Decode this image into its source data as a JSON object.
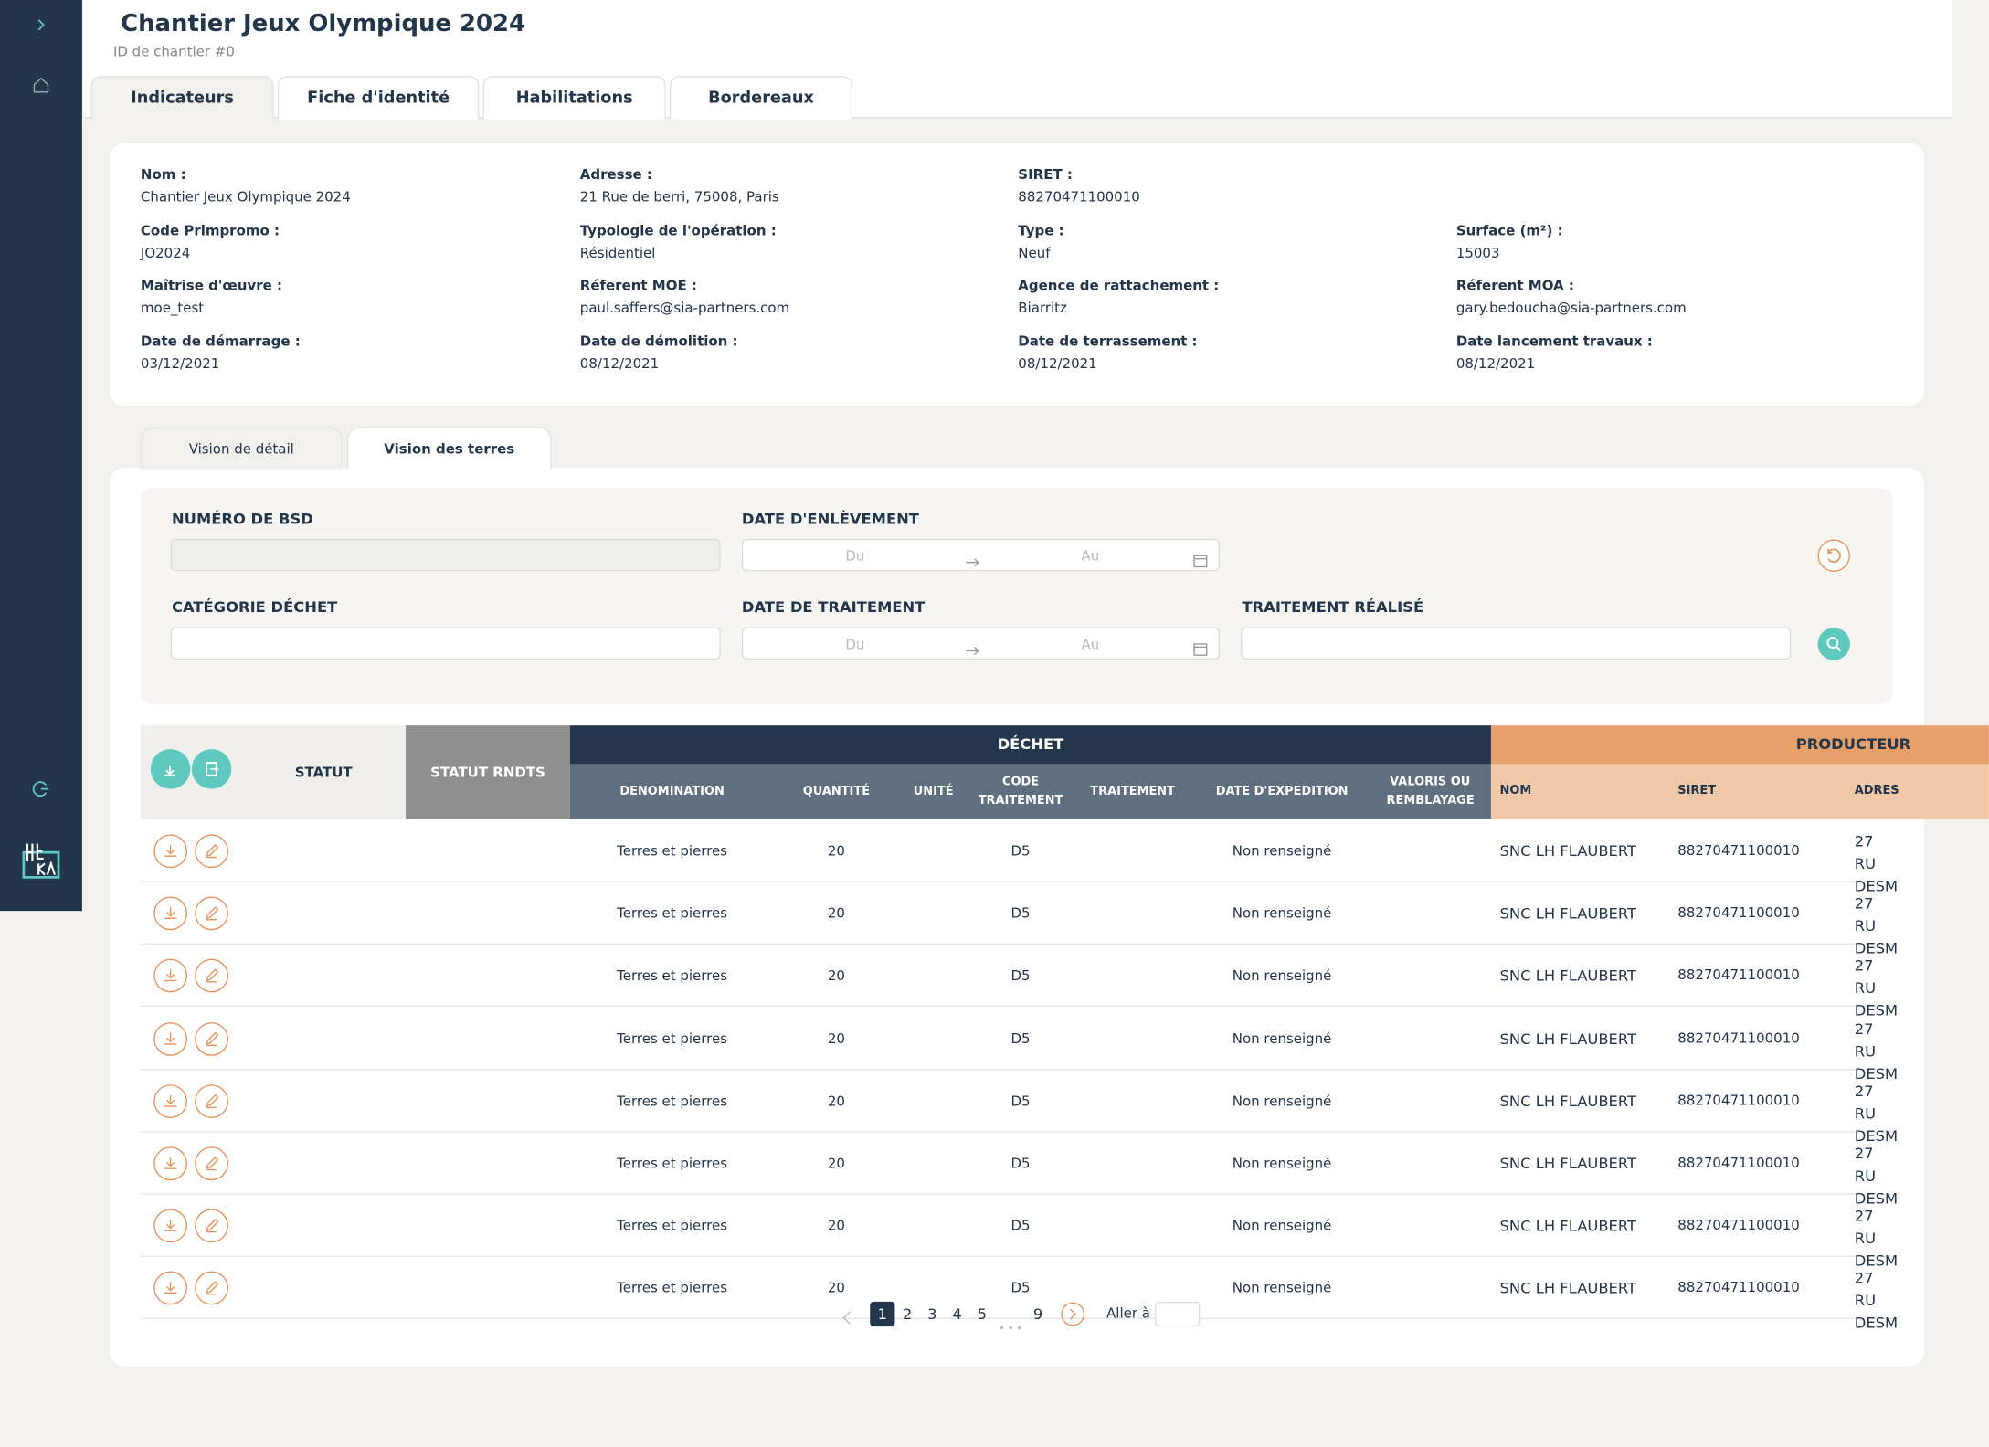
{
  "header": {
    "title": "Chantier Jeux Olympique 2024",
    "subtitle": "ID de chantier #0"
  },
  "tabs": [
    "Indicateurs",
    "Fiche d'identité",
    "Habilitations",
    "Bordereaux"
  ],
  "info": [
    [
      {
        "label": "Nom :",
        "value": "Chantier Jeux Olympique 2024"
      },
      {
        "label": "Adresse :",
        "value": "21 Rue de berri, 75008, Paris"
      },
      {
        "label": "SIRET :",
        "value": "88270471100010"
      }
    ],
    [
      {
        "label": "Code Primpromo :",
        "value": "JO2024"
      },
      {
        "label": "Typologie de l'opération :",
        "value": "Résidentiel"
      },
      {
        "label": "Type :",
        "value": "Neuf"
      },
      {
        "label": "Surface (m²) :",
        "value": "15003"
      }
    ],
    [
      {
        "label": "Maîtrise d'œuvre :",
        "value": "moe_test"
      },
      {
        "label": "Réferent MOE :",
        "value": "paul.saffers@sia-partners.com"
      },
      {
        "label": "Agence de rattachement :",
        "value": "Biarritz"
      },
      {
        "label": "Réferent MOA :",
        "value": "gary.bedoucha@sia-partners.com"
      }
    ],
    [
      {
        "label": "Date de démarrage :",
        "value": "03/12/2021"
      },
      {
        "label": "Date de démolition :",
        "value": "08/12/2021"
      },
      {
        "label": "Date de terrassement :",
        "value": "08/12/2021"
      },
      {
        "label": "Date lancement travaux :",
        "value": "08/12/2021"
      }
    ]
  ],
  "view_tabs": [
    "Vision de détail",
    "Vision des terres"
  ],
  "filters": {
    "bsd": "NUMÉRO DE BSD",
    "enlevement": "DATE D'ENLÈVEMENT",
    "categorie": "CATÉGORIE DÉCHET",
    "traitement_date": "DATE DE TRAITEMENT",
    "traitement": "TRAITEMENT RÉALISÉ",
    "from": "Du",
    "to": "Au"
  },
  "table": {
    "statut": "STATUT",
    "statut_rndts": "STATUT RNDTS",
    "dechet": "DÉCHET",
    "producteur": "PRODUCTEUR",
    "dechet_columns": [
      "DENOMINATION",
      "QUANTITÉ",
      "UNITÉ",
      "CODE TRAITEMENT",
      "TRAITEMENT",
      "DATE D'EXPEDITION",
      "VALORIS OU REMBLAYAGE"
    ],
    "producteur_columns": [
      "NOM",
      "SIRET",
      "ADRES"
    ],
    "rows": [
      {
        "denomination": "Terres et pierres",
        "quantite": 20,
        "code": "D5",
        "date": "Non renseigné",
        "nom": "SNC LH FLAUBERT",
        "siret": "88270471100010",
        "adresse": "27 RU DESM"
      },
      {
        "denomination": "Terres et pierres",
        "quantite": 20,
        "code": "D5",
        "date": "Non renseigné",
        "nom": "SNC LH FLAUBERT",
        "siret": "88270471100010",
        "adresse": "27 RU DESM"
      },
      {
        "denomination": "Terres et pierres",
        "quantite": 20,
        "code": "D5",
        "date": "Non renseigné",
        "nom": "SNC LH FLAUBERT",
        "siret": "88270471100010",
        "adresse": "27 RU DESM"
      },
      {
        "denomination": "Terres et pierres",
        "quantite": 20,
        "code": "D5",
        "date": "Non renseigné",
        "nom": "SNC LH FLAUBERT",
        "siret": "88270471100010",
        "adresse": "27 RU DESM"
      },
      {
        "denomination": "Terres et pierres",
        "quantite": 20,
        "code": "D5",
        "date": "Non renseigné",
        "nom": "SNC LH FLAUBERT",
        "siret": "88270471100010",
        "adresse": "27 RU DESM"
      },
      {
        "denomination": "Terres et pierres",
        "quantite": 20,
        "code": "D5",
        "date": "Non renseigné",
        "nom": "SNC LH FLAUBERT",
        "siret": "88270471100010",
        "adresse": "27 RU DESM"
      },
      {
        "denomination": "Terres et pierres",
        "quantite": 20,
        "code": "D5",
        "date": "Non renseigné",
        "nom": "SNC LH FLAUBERT",
        "siret": "88270471100010",
        "adresse": "27 RU DESM"
      },
      {
        "denomination": "Terres et pierres",
        "quantite": 20,
        "code": "D5",
        "date": "Non renseigné",
        "nom": "SNC LH FLAUBERT",
        "siret": "88270471100010",
        "adresse": "27 RU DESM"
      }
    ]
  },
  "pagination": {
    "pages": [
      1,
      2,
      3,
      4,
      5,
      9
    ],
    "goto": "Aller à"
  }
}
